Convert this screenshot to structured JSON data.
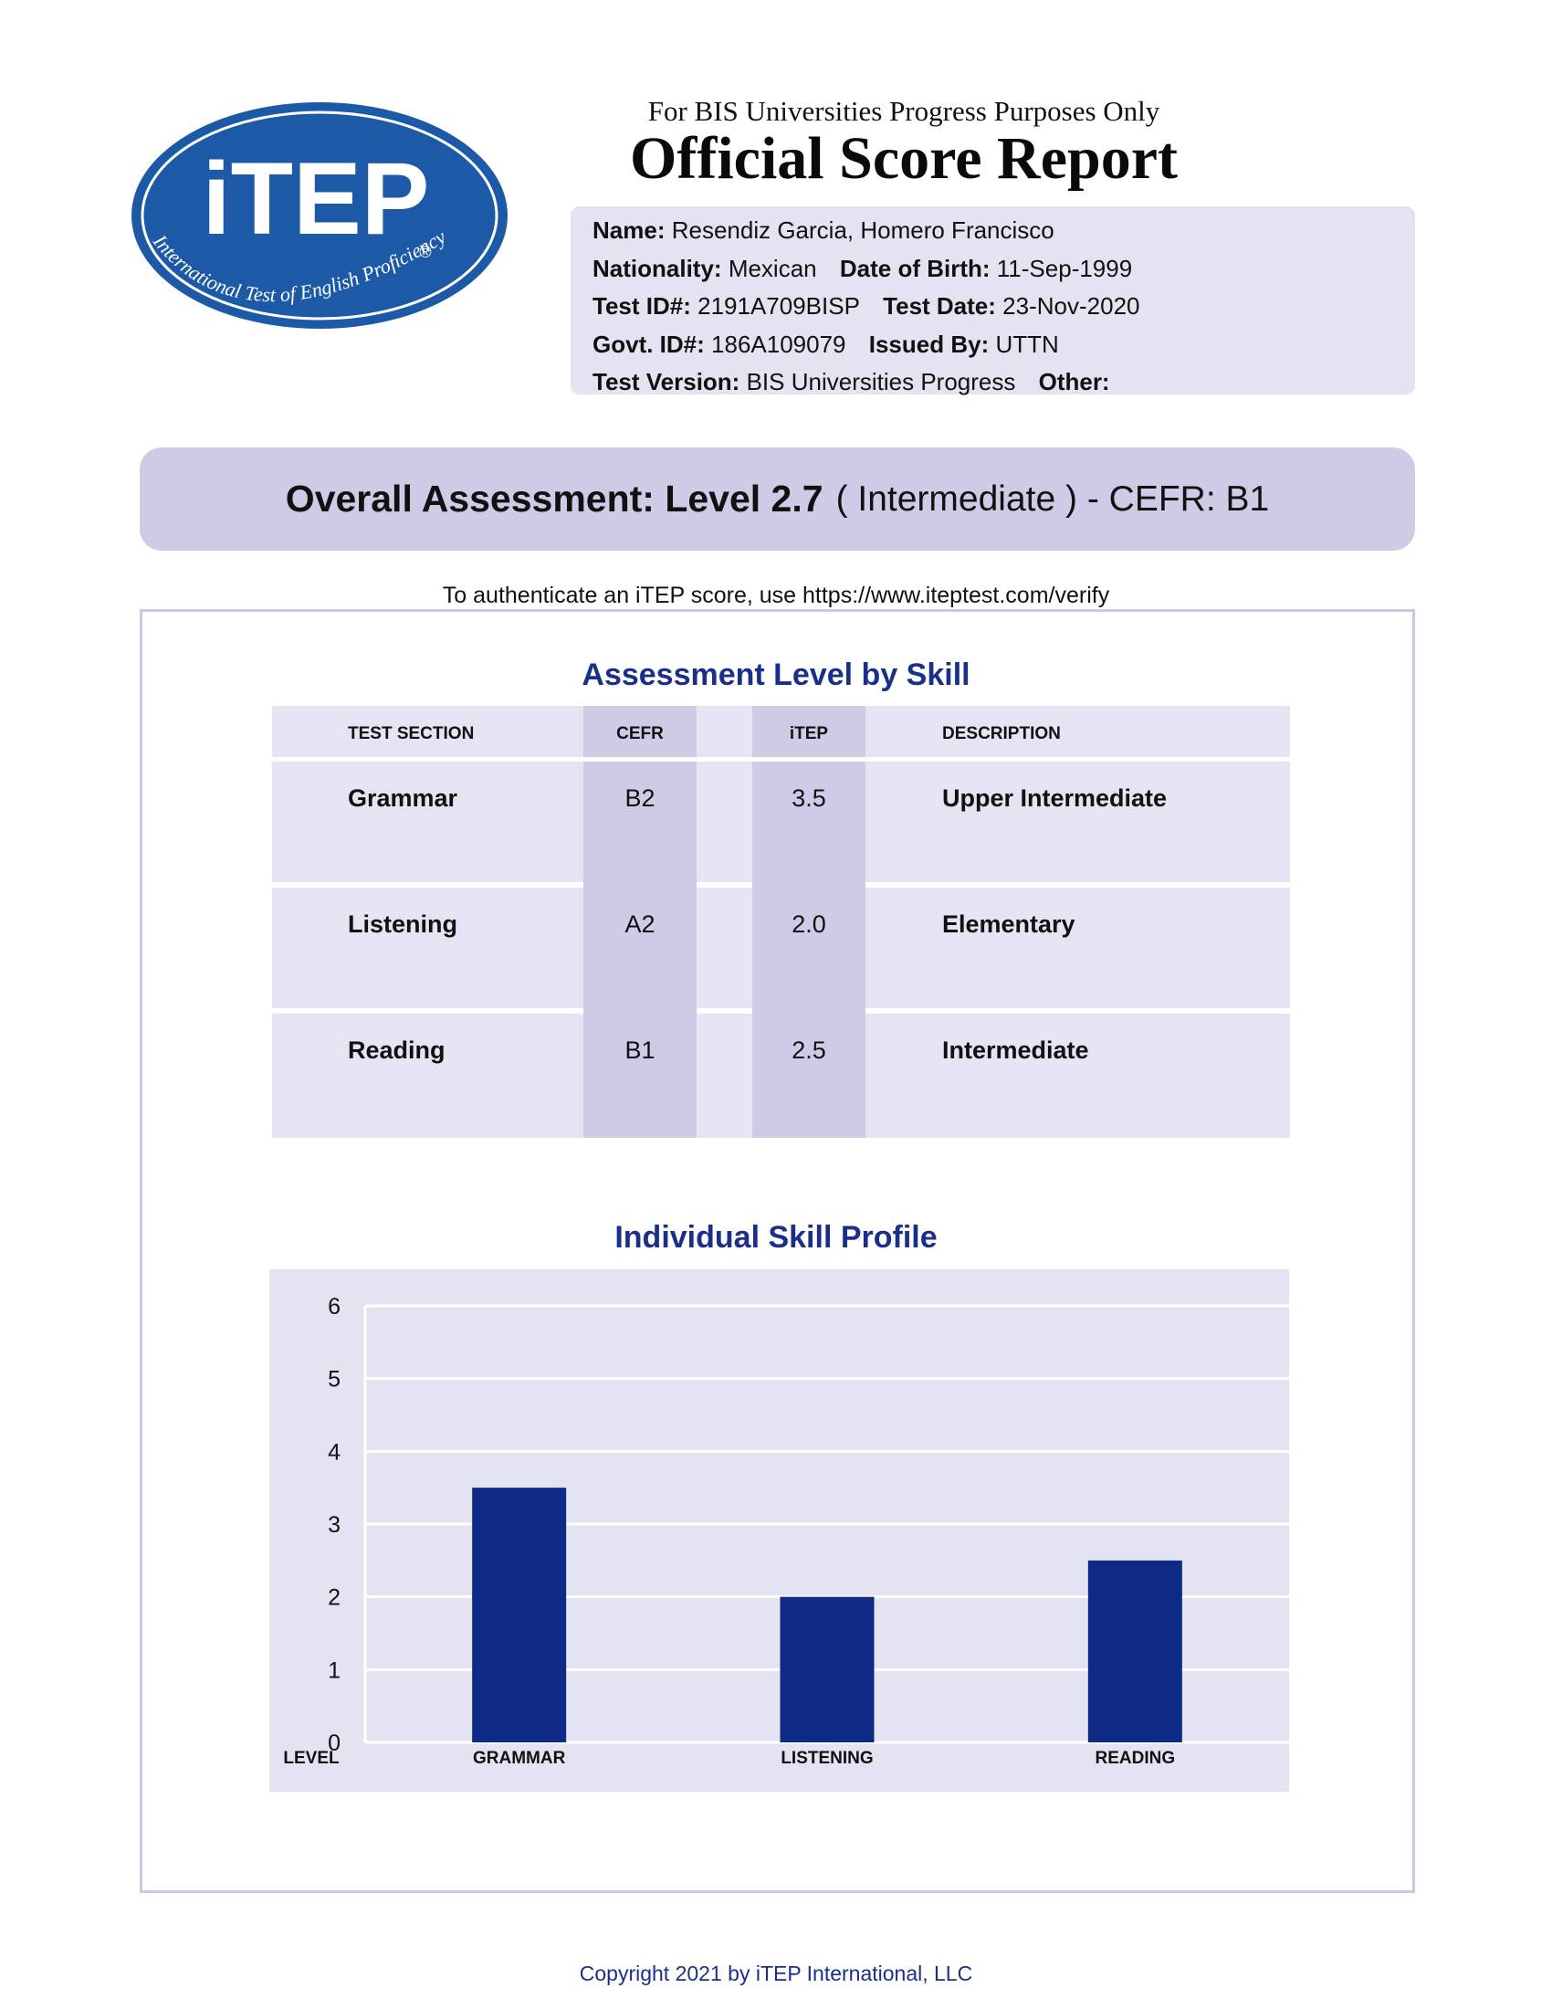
{
  "header": {
    "logo_text": "iTEP",
    "logo_tagline": "International Test of English Proficiency",
    "logo_registered": "®",
    "purpose": "For BIS Universities Progress Purposes Only",
    "title": "Official Score Report"
  },
  "candidate": {
    "name_label": "Name:",
    "name": "Resendiz Garcia, Homero Francisco",
    "nationality_label": "Nationality:",
    "nationality": "Mexican",
    "dob_label": "Date of Birth:",
    "dob": "11-Sep-1999",
    "test_id_label": "Test ID#:",
    "test_id": "2191A709BISP",
    "test_date_label": "Test Date:",
    "test_date": "23-Nov-2020",
    "govt_id_label": "Govt. ID#:",
    "govt_id": "186A109079",
    "issued_by_label": "Issued By:",
    "issued_by": "UTTN",
    "test_version_label": "Test Version:",
    "test_version": "BIS Universities Progress",
    "other_label": "Other:",
    "other": ""
  },
  "overall": {
    "strong": "Overall Assessment: Level 2.7",
    "light": "( Intermediate ) - CEFR: B1"
  },
  "verify_text": "To authenticate an iTEP score, use https://www.iteptest.com/verify",
  "skills_table": {
    "title": "Assessment Level by Skill",
    "headers": [
      "TEST SECTION",
      "CEFR",
      "iTEP",
      "DESCRIPTION"
    ],
    "rows": [
      {
        "section": "Grammar",
        "cefr": "B2",
        "itep": "3.5",
        "description": "Upper Intermediate"
      },
      {
        "section": "Listening",
        "cefr": "A2",
        "itep": "2.0",
        "description": "Elementary"
      },
      {
        "section": "Reading",
        "cefr": "B1",
        "itep": "2.5",
        "description": "Intermediate"
      }
    ]
  },
  "chart_data": {
    "type": "bar",
    "title": "Individual Skill Profile",
    "xlabel": "",
    "ylabel": "LEVEL",
    "categories": [
      "GRAMMAR",
      "LISTENING",
      "READING"
    ],
    "values": [
      3.5,
      2.0,
      2.5
    ],
    "ylim": [
      0,
      6
    ],
    "yticks": [
      0,
      1,
      2,
      3,
      4,
      5,
      6
    ],
    "grid": true,
    "bar_color": "#0f2a85"
  },
  "colors": {
    "accent": "#1a2f8a",
    "panel": "#e3e3f1",
    "shade": "#cdcbe6",
    "logo_blue": "#1c5aa8"
  },
  "copyright": "Copyright 2021 by iTEP International, LLC"
}
